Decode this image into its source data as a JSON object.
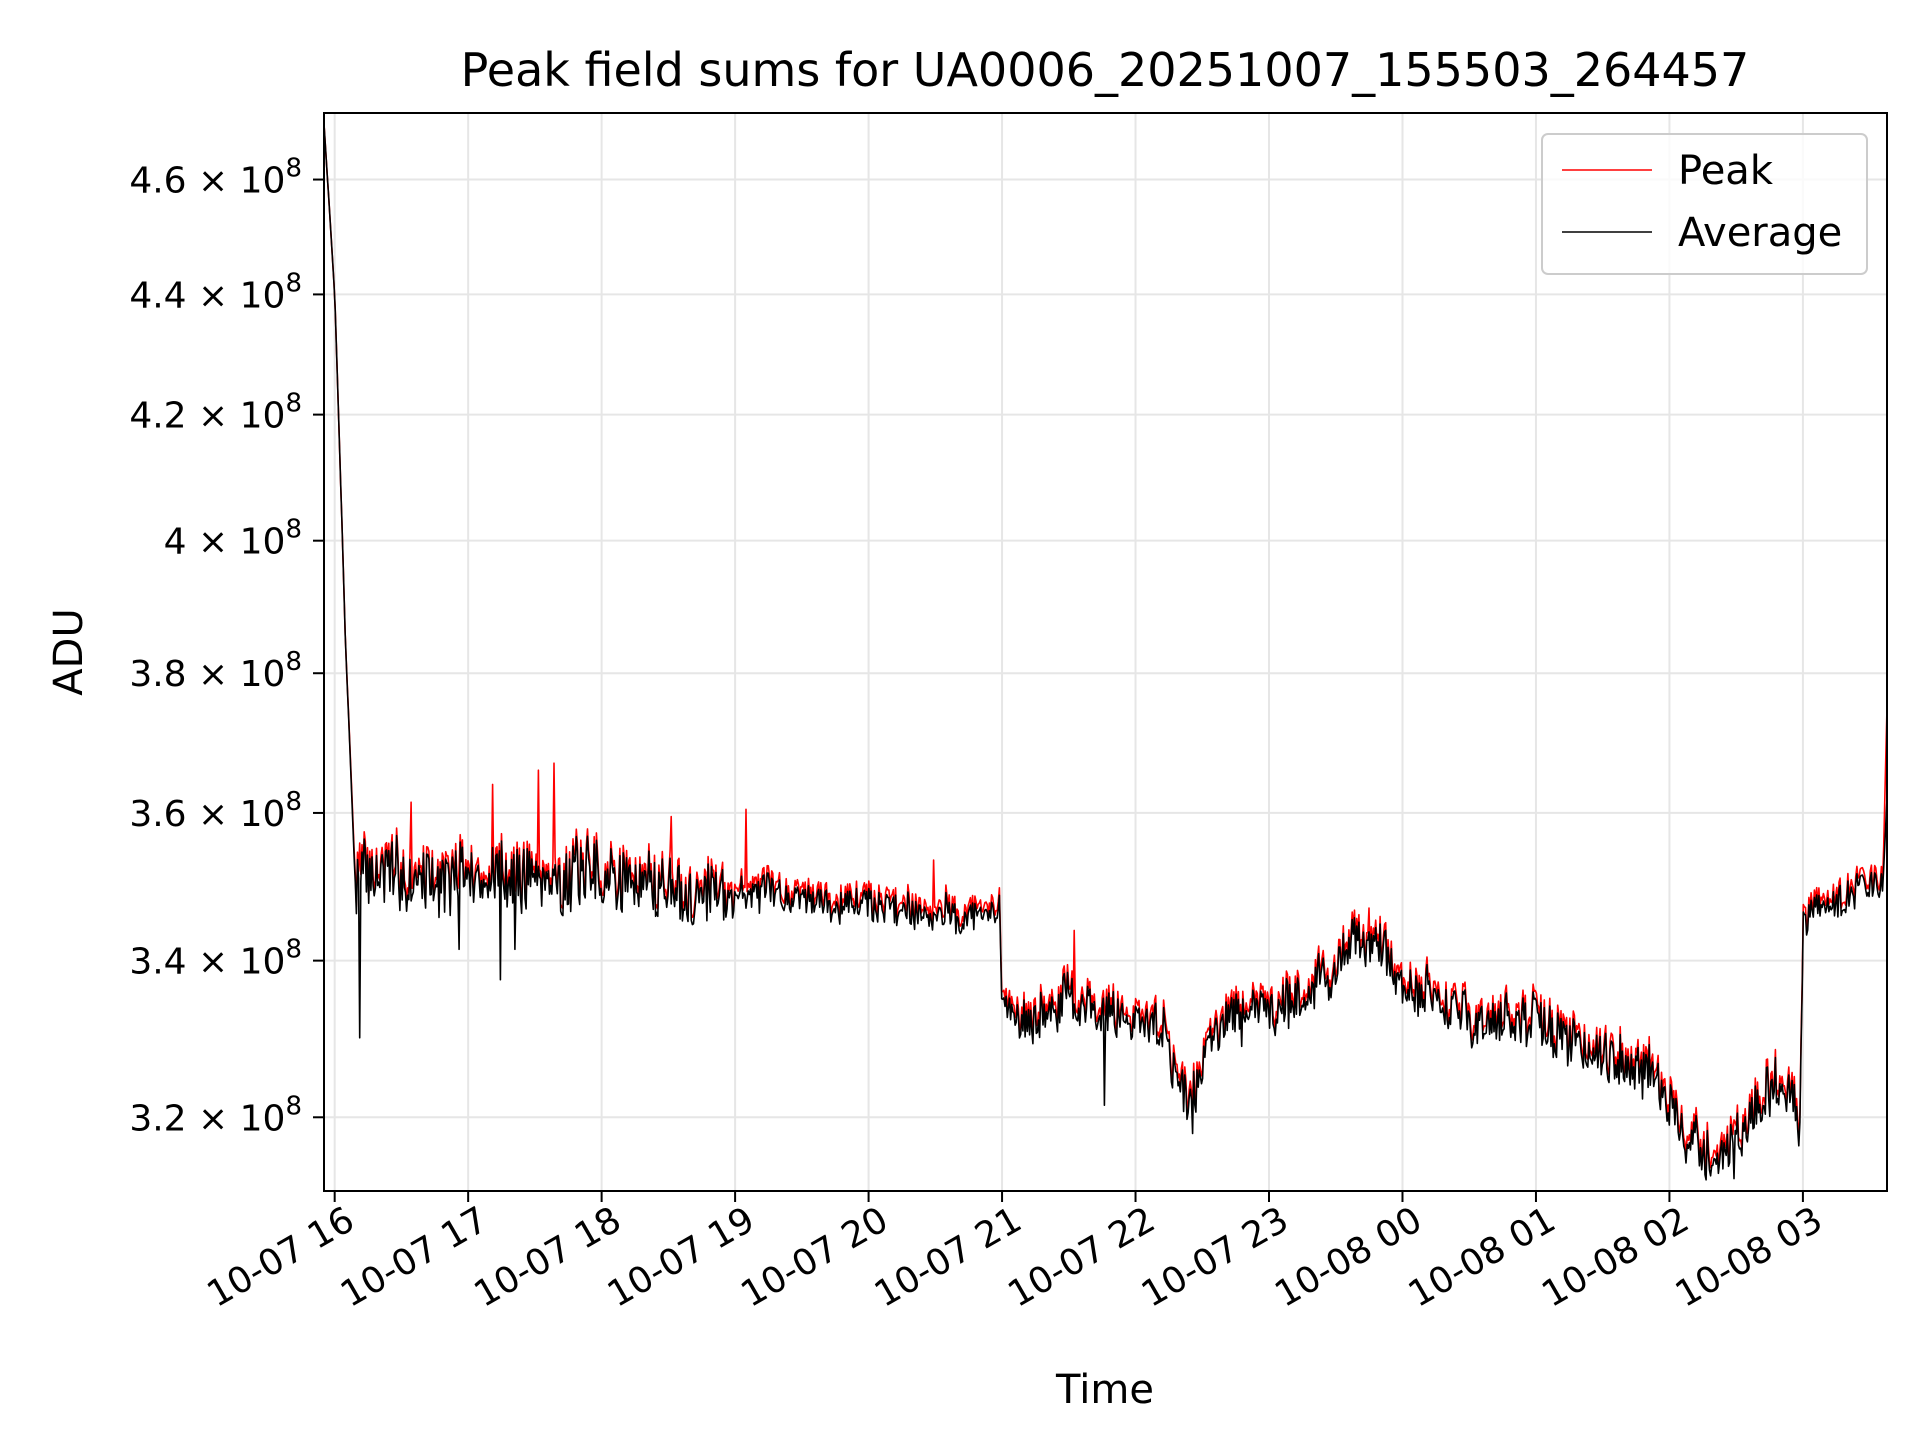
{
  "chart_data": {
    "type": "line",
    "title": "Peak field sums for UA0006_20251007_155503_264457",
    "xlabel": "Time",
    "ylabel": "ADU",
    "yscale": "log",
    "grid": true,
    "legend_position": "top-right",
    "x_range_hours": [
      15.92,
      27.63
    ],
    "ylim": [
      311000000,
      472000000
    ],
    "x_ticks": [
      {
        "hour": 16,
        "label": "10-07 16"
      },
      {
        "hour": 17,
        "label": "10-07 17"
      },
      {
        "hour": 18,
        "label": "10-07 18"
      },
      {
        "hour": 19,
        "label": "10-07 19"
      },
      {
        "hour": 20,
        "label": "10-07 20"
      },
      {
        "hour": 21,
        "label": "10-07 21"
      },
      {
        "hour": 22,
        "label": "10-07 22"
      },
      {
        "hour": 23,
        "label": "10-07 23"
      },
      {
        "hour": 24,
        "label": "10-08 00"
      },
      {
        "hour": 25,
        "label": "10-08 01"
      },
      {
        "hour": 26,
        "label": "10-08 02"
      },
      {
        "hour": 27,
        "label": "10-08 03"
      }
    ],
    "y_ticks": [
      {
        "value": 320000000,
        "mantissa": "3.2",
        "base": "10",
        "exponent": "8"
      },
      {
        "value": 340000000,
        "mantissa": "3.4",
        "base": "10",
        "exponent": "8"
      },
      {
        "value": 360000000,
        "mantissa": "3.6",
        "base": "10",
        "exponent": "8"
      },
      {
        "value": 380000000,
        "mantissa": "3.8",
        "base": "10",
        "exponent": "8"
      },
      {
        "value": 400000000,
        "mantissa": "4",
        "base": "10",
        "exponent": "8"
      },
      {
        "value": 420000000,
        "mantissa": "4.2",
        "base": "10",
        "exponent": "8"
      },
      {
        "value": 440000000,
        "mantissa": "4.4",
        "base": "10",
        "exponent": "8"
      },
      {
        "value": 460000000,
        "mantissa": "4.6",
        "base": "10",
        "exponent": "8"
      }
    ],
    "series": [
      {
        "name": "Peak",
        "color": "#ff0000",
        "trend_points": [
          [
            15.92,
            470000000
          ],
          [
            16.0,
            440000000
          ],
          [
            16.08,
            385000000
          ],
          [
            16.15,
            353000000
          ],
          [
            16.5,
            352000000
          ],
          [
            17.0,
            352000000
          ],
          [
            17.5,
            352500000
          ],
          [
            18.0,
            352000000
          ],
          [
            18.5,
            351000000
          ],
          [
            19.0,
            350000000
          ],
          [
            19.5,
            349500000
          ],
          [
            20.0,
            348500000
          ],
          [
            20.5,
            347500000
          ],
          [
            20.98,
            346500000
          ],
          [
            21.0,
            336000000
          ],
          [
            21.2,
            333000000
          ],
          [
            21.5,
            335500000
          ],
          [
            21.75,
            334500000
          ],
          [
            22.0,
            333500000
          ],
          [
            22.2,
            332500000
          ],
          [
            22.4,
            322000000
          ],
          [
            22.6,
            333000000
          ],
          [
            23.0,
            335000000
          ],
          [
            23.3,
            337000000
          ],
          [
            23.6,
            342000000
          ],
          [
            23.8,
            344000000
          ],
          [
            24.0,
            338000000
          ],
          [
            24.3,
            335000000
          ],
          [
            24.6,
            333000000
          ],
          [
            25.0,
            333000000
          ],
          [
            25.3,
            330500000
          ],
          [
            25.6,
            328500000
          ],
          [
            25.9,
            326000000
          ],
          [
            26.1,
            318000000
          ],
          [
            26.4,
            316000000
          ],
          [
            26.7,
            323000000
          ],
          [
            26.9,
            325000000
          ],
          [
            26.98,
            320000000
          ],
          [
            27.0,
            347000000
          ],
          [
            27.3,
            349500000
          ],
          [
            27.6,
            351500000
          ],
          [
            27.63,
            375000000
          ]
        ],
        "spikes": [
          [
            16.57,
            361500000
          ],
          [
            17.18,
            364000000
          ],
          [
            17.53,
            366000000
          ],
          [
            17.64,
            367000000
          ],
          [
            18.52,
            359500000
          ],
          [
            19.08,
            360500000
          ],
          [
            20.49,
            353500000
          ],
          [
            21.54,
            344000000
          ],
          [
            23.75,
            347000000
          ]
        ]
      },
      {
        "name": "Average",
        "color": "#000000",
        "trend_points": [
          [
            15.92,
            470000000
          ],
          [
            16.0,
            440000000
          ],
          [
            16.08,
            385000000
          ],
          [
            16.15,
            352000000
          ],
          [
            16.5,
            351000000
          ],
          [
            17.0,
            351000000
          ],
          [
            17.5,
            351500000
          ],
          [
            18.0,
            351000000
          ],
          [
            18.5,
            350000000
          ],
          [
            19.0,
            349000000
          ],
          [
            19.5,
            348500000
          ],
          [
            20.0,
            347500000
          ],
          [
            20.5,
            346500000
          ],
          [
            20.98,
            345500000
          ],
          [
            21.0,
            335000000
          ],
          [
            21.2,
            332000000
          ],
          [
            21.5,
            334500000
          ],
          [
            21.75,
            333500000
          ],
          [
            22.0,
            332500000
          ],
          [
            22.2,
            331500000
          ],
          [
            22.4,
            321000000
          ],
          [
            22.6,
            332000000
          ],
          [
            23.0,
            334000000
          ],
          [
            23.3,
            336000000
          ],
          [
            23.6,
            341000000
          ],
          [
            23.8,
            343000000
          ],
          [
            24.0,
            337000000
          ],
          [
            24.3,
            334000000
          ],
          [
            24.6,
            332000000
          ],
          [
            25.0,
            332000000
          ],
          [
            25.3,
            329500000
          ],
          [
            25.6,
            327500000
          ],
          [
            25.9,
            325000000
          ],
          [
            26.1,
            317000000
          ],
          [
            26.4,
            315000000
          ],
          [
            26.7,
            322000000
          ],
          [
            26.9,
            324000000
          ],
          [
            26.98,
            319000000
          ],
          [
            27.0,
            346000000
          ],
          [
            27.3,
            348500000
          ],
          [
            27.6,
            350500000
          ],
          [
            27.63,
            362000000
          ]
        ],
        "dips": [
          [
            16.19,
            330000000
          ],
          [
            16.93,
            341500000
          ],
          [
            17.24,
            337500000
          ],
          [
            17.35,
            341500000
          ],
          [
            21.77,
            321500000
          ],
          [
            22.43,
            318000000
          ],
          [
            26.48,
            312500000
          ]
        ]
      }
    ]
  }
}
